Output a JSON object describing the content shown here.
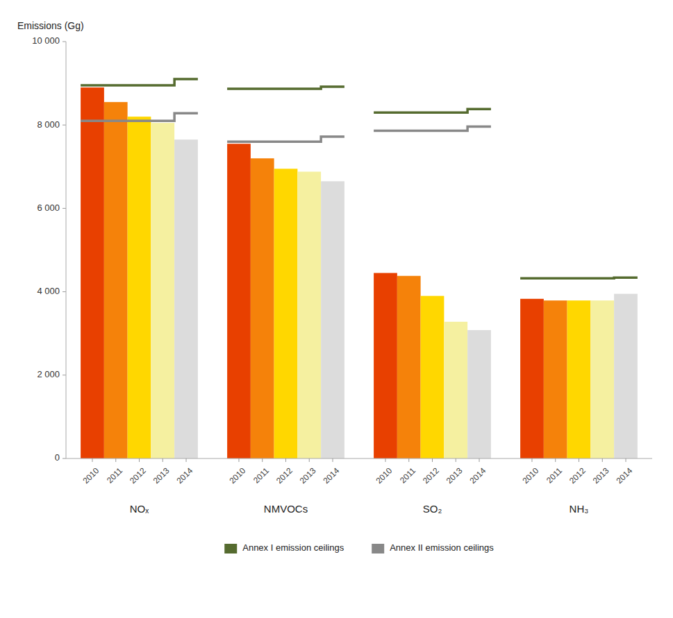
{
  "chart_data": {
    "type": "bar",
    "ylabel": "Emissions (Gg)",
    "categories": [
      "NOₓ",
      "NMVOCs",
      "SO₂",
      "NH₃"
    ],
    "series": [
      {
        "name": "2010",
        "type": "bar",
        "color": "#E84000",
        "values": [
          8900,
          7550,
          4450,
          3830
        ]
      },
      {
        "name": "2011",
        "type": "bar",
        "color": "#F5820A",
        "values": [
          8550,
          7200,
          4380,
          3790
        ]
      },
      {
        "name": "2012",
        "type": "bar",
        "color": "#FFD700",
        "values": [
          8200,
          6950,
          3900,
          3790
        ]
      },
      {
        "name": "2013",
        "type": "bar",
        "color": "#F5F0A0",
        "values": [
          8050,
          6880,
          3280,
          3790
        ]
      },
      {
        "name": "2014",
        "type": "bar",
        "color": "#DCDCDC",
        "values": [
          7650,
          6650,
          3080,
          3950
        ]
      },
      {
        "name": "Annex I emission ceilings",
        "type": "line",
        "color": "#556B2F",
        "values": [
          8950,
          8870,
          8300,
          4320
        ],
        "end_values": [
          9100,
          8920,
          8380,
          4340
        ]
      },
      {
        "name": "Annex II emission ceilings",
        "type": "line",
        "color": "#888888",
        "values": [
          8100,
          7600,
          7860,
          null
        ],
        "end_values": [
          8280,
          7720,
          7960,
          null
        ]
      }
    ],
    "ylim": [
      0,
      10000
    ],
    "yticks": [
      0,
      {
        "value": 2000,
        "label": "2 000"
      },
      {
        "value": 4000,
        "label": "4 000"
      },
      {
        "value": 6000,
        "label": "6 000"
      },
      {
        "value": 8000,
        "label": "8 000"
      },
      {
        "value": 10000,
        "label": "10 000"
      }
    ],
    "grid": false,
    "legend": "bottom"
  }
}
